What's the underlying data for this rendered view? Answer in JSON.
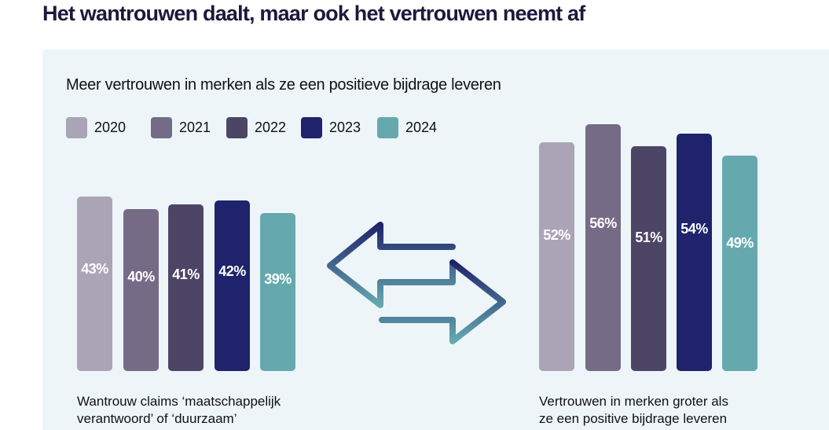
{
  "header": {
    "title": "Het wantrouwen daalt, maar ook het vertrouwen neemt af"
  },
  "chart_data": [
    {
      "type": "bar",
      "title": "Meer vertrouwen in merken als ze een positieve bijdrage leveren",
      "caption_line1": "Wantrouw claims ‘maatschappelijk",
      "caption_line2": "verantwoord’ of ‘duurzaam’",
      "categories": [
        "2020",
        "2021",
        "2022",
        "2023",
        "2024"
      ],
      "values": [
        43,
        40,
        41,
        42,
        39
      ],
      "labels": [
        "43%",
        "40%",
        "41%",
        "42%",
        "39%"
      ],
      "unit": "%",
      "ylim": [
        0,
        60
      ],
      "grid": false
    },
    {
      "type": "bar",
      "title": "Meer vertrouwen in merken als ze een positieve bijdrage leveren",
      "caption_line1": "Vertrouwen in merken groter als",
      "caption_line2": "ze een positive bijdrage leveren",
      "categories": [
        "2020",
        "2021",
        "2022",
        "2023",
        "2024"
      ],
      "values": [
        52,
        56,
        51,
        54,
        49
      ],
      "labels": [
        "52%",
        "56%",
        "51%",
        "54%",
        "49%"
      ],
      "unit": "%",
      "ylim": [
        0,
        60
      ],
      "grid": false
    }
  ],
  "legend": {
    "placement": "top-left",
    "items": [
      {
        "label": "2020",
        "color": "#aba4b6"
      },
      {
        "label": "2021",
        "color": "#756b87"
      },
      {
        "label": "2022",
        "color": "#4d4566"
      },
      {
        "label": "2023",
        "color": "#1f236b"
      },
      {
        "label": "2024",
        "color": "#65a9af"
      }
    ]
  },
  "subtitle": "Meer vertrouwen in merken als ze een positieve bijdrage leveren",
  "icons": {
    "exchange": "left-right-arrows-icon",
    "gradient_start": "#1f236b",
    "gradient_end": "#65a9af"
  }
}
